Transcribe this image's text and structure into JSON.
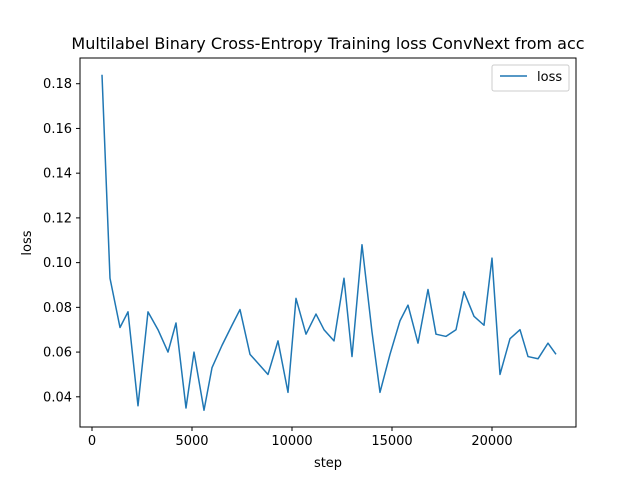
{
  "chart_data": {
    "type": "line",
    "title": "Multilabel Binary Cross-Entropy Training loss ConvNext from acc",
    "xlabel": "step",
    "ylabel": "loss",
    "xlim": [
      -600,
      24200
    ],
    "ylim": [
      0.0265,
      0.1915
    ],
    "xticks": [
      0,
      5000,
      10000,
      15000,
      20000
    ],
    "xtick_labels": [
      "0",
      "5000",
      "10000",
      "15000",
      "20000"
    ],
    "yticks": [
      0.04,
      0.06,
      0.08,
      0.1,
      0.12,
      0.14,
      0.16,
      0.18
    ],
    "ytick_labels": [
      "0.04",
      "0.06",
      "0.08",
      "0.10",
      "0.12",
      "0.14",
      "0.16",
      "0.18"
    ],
    "grid": false,
    "legend_position": "top-right",
    "series": [
      {
        "name": "loss",
        "color": "#1f77b4",
        "x": [
          500,
          900,
          1400,
          1800,
          2300,
          2800,
          3300,
          3800,
          4200,
          4700,
          5100,
          5600,
          6000,
          6500,
          7000,
          7400,
          7900,
          8400,
          8800,
          9300,
          9800,
          10200,
          10700,
          11200,
          11600,
          12100,
          12600,
          13000,
          13500,
          14000,
          14400,
          14900,
          15400,
          15800,
          16300,
          16800,
          17200,
          17700,
          18200,
          18600,
          19100,
          19600,
          20000,
          20400,
          20900,
          21400,
          21800,
          22300,
          22800,
          23200
        ],
        "values": [
          0.184,
          0.093,
          0.071,
          0.078,
          0.036,
          0.078,
          0.07,
          0.06,
          0.073,
          0.035,
          0.06,
          0.034,
          0.053,
          0.063,
          0.072,
          0.079,
          0.059,
          0.054,
          0.05,
          0.065,
          0.042,
          0.084,
          0.068,
          0.077,
          0.07,
          0.065,
          0.093,
          0.058,
          0.108,
          0.069,
          0.042,
          0.059,
          0.074,
          0.081,
          0.064,
          0.088,
          0.068,
          0.067,
          0.07,
          0.087,
          0.076,
          0.072,
          0.102,
          0.05,
          0.066,
          0.07,
          0.058,
          0.057,
          0.064,
          0.059
        ]
      }
    ]
  }
}
